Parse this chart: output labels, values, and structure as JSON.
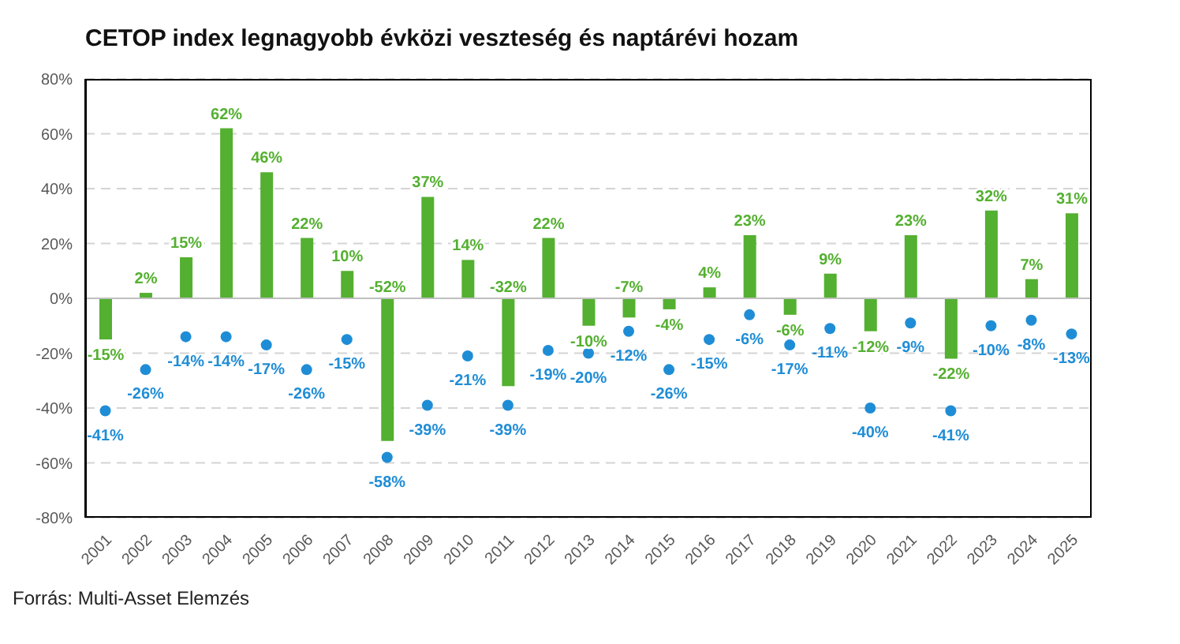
{
  "chart_data": {
    "type": "bar",
    "title": "CETOP index legnagyobb évközi veszteség és naptárévi hozam",
    "categories": [
      "2001",
      "2002",
      "2003",
      "2004",
      "2005",
      "2006",
      "2007",
      "2008",
      "2009",
      "2010",
      "2011",
      "2012",
      "2013",
      "2014",
      "2015",
      "2016",
      "2017",
      "2018",
      "2019",
      "2020",
      "2021",
      "2022",
      "2023",
      "2024",
      "2025"
    ],
    "series": [
      {
        "type": "bar",
        "color": "#54b030",
        "values": [
          -15,
          2,
          15,
          62,
          46,
          22,
          10,
          -52,
          37,
          14,
          -32,
          22,
          -10,
          -7,
          -4,
          4,
          23,
          -6,
          9,
          -12,
          23,
          -22,
          32,
          7,
          31
        ],
        "value_labels": [
          "-15%",
          "2%",
          "15%",
          "62%",
          "46%",
          "22%",
          "10%",
          "-52%",
          "37%",
          "14%",
          "-32%",
          "22%",
          "-10%",
          "-7%",
          "-4%",
          "4%",
          "23%",
          "-6%",
          "9%",
          "-12%",
          "23%",
          "-22%",
          "32%",
          "7%",
          "31%"
        ]
      },
      {
        "type": "scatter",
        "color": "#1f8dd6",
        "values": [
          -41,
          -26,
          -14,
          -14,
          -17,
          -26,
          -15,
          -58,
          -39,
          -21,
          -39,
          -19,
          -20,
          -12,
          -26,
          -15,
          -6,
          -17,
          -11,
          -40,
          -9,
          -41,
          -10,
          -8,
          -13
        ],
        "value_labels": [
          "-41%",
          "-26%",
          "-14%",
          "-14%",
          "-17%",
          "-26%",
          "-15%",
          "-58%",
          "-39%",
          "-21%",
          "-39%",
          "-19%",
          "-20%",
          "-12%",
          "-26%",
          "-15%",
          "-6%",
          "-17%",
          "-11%",
          "-40%",
          "-9%",
          "-41%",
          "-10%",
          "-8%",
          "-13%"
        ]
      }
    ],
    "ylim": [
      -80,
      80
    ],
    "yticks": [
      {
        "value": -80,
        "label": "-80%"
      },
      {
        "value": -60,
        "label": "-60%"
      },
      {
        "value": -40,
        "label": "-40%"
      },
      {
        "value": -20,
        "label": "-20%"
      },
      {
        "value": 0,
        "label": "0%"
      },
      {
        "value": 20,
        "label": "20%"
      },
      {
        "value": 40,
        "label": "40%"
      },
      {
        "value": 60,
        "label": "60%"
      },
      {
        "value": 80,
        "label": "80%"
      }
    ],
    "grid": "y",
    "legend": false,
    "marker": "circle",
    "annotations": [
      "Forrás: Multi-Asset Elemzés"
    ]
  }
}
